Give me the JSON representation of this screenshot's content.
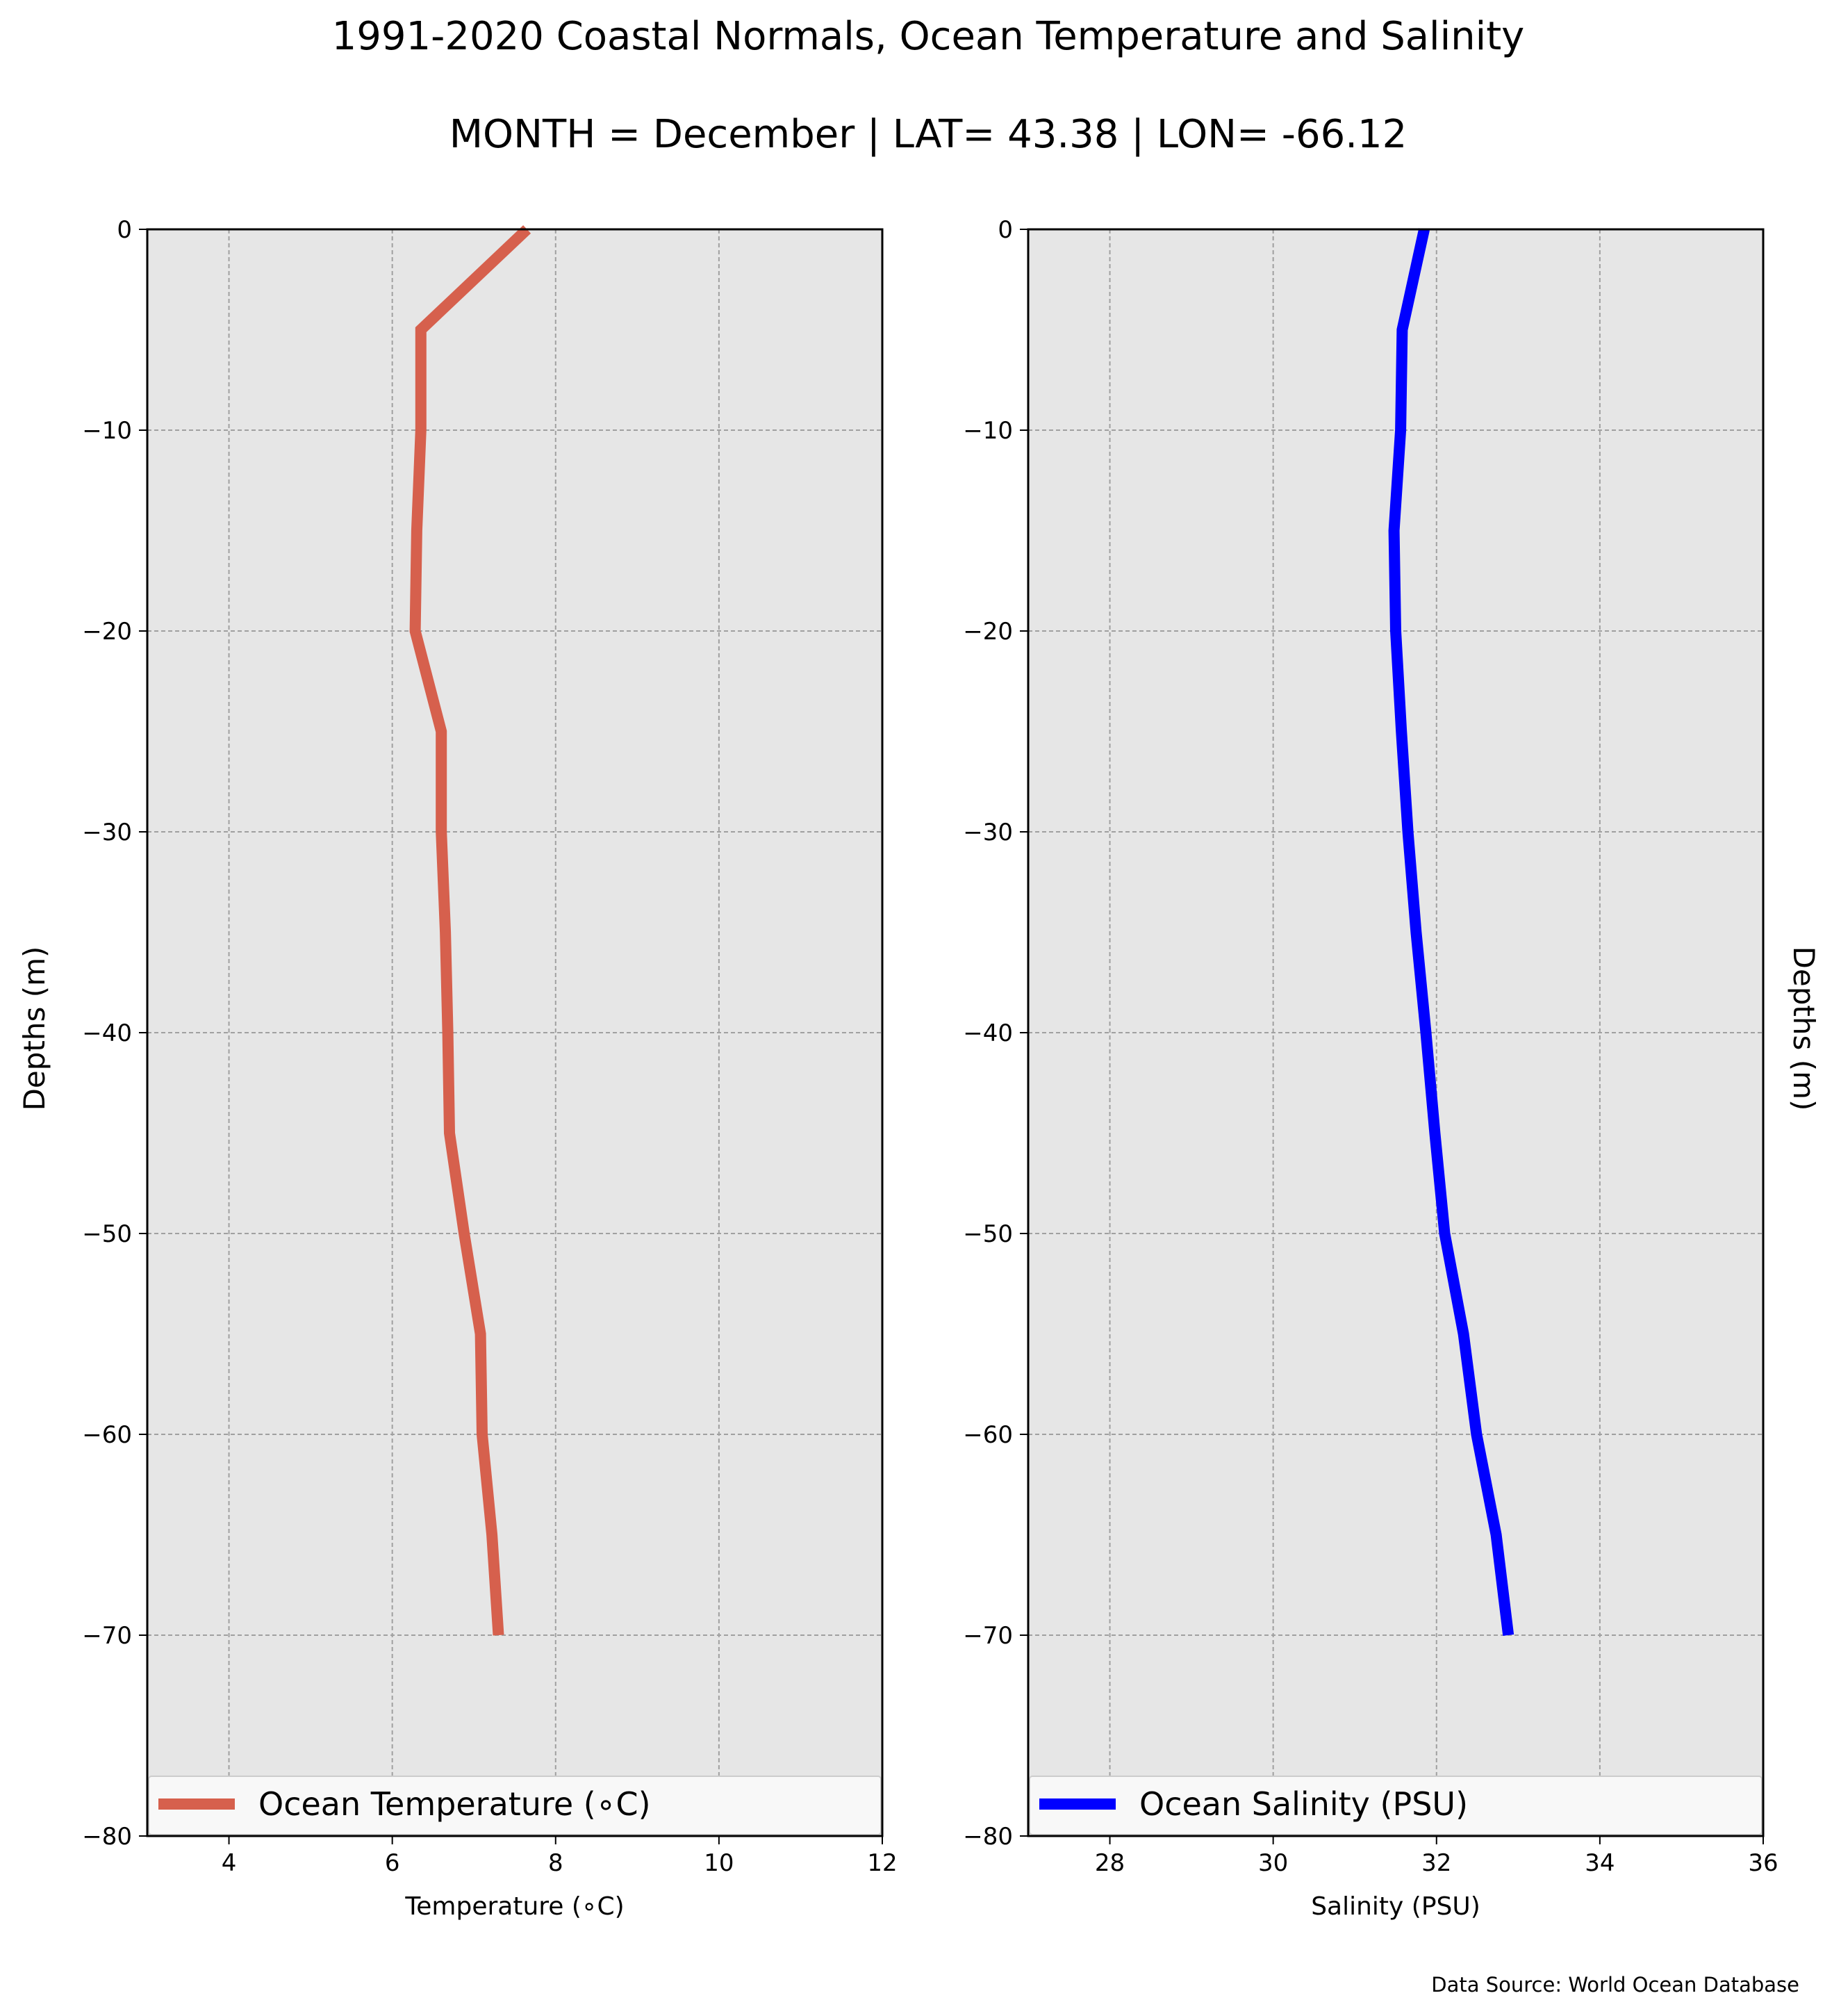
{
  "title": "1991-2020 Coastal Normals, Ocean Temperature and Salinity",
  "subtitle": "MONTH = December | LAT= 43.38 | LON= -66.12",
  "source": "Data Source: World Ocean Database",
  "colors": {
    "panel_bg": "#e6e6e6",
    "grid": "#a0a0a0",
    "temperature": "#d6604d",
    "salinity": "#0000ff"
  },
  "chart_data": [
    {
      "type": "line",
      "xlabel": "Temperature ($^\\circ$C)",
      "xlabel_display": "Temperature (∘C)",
      "ylabel": "Depths (m)",
      "xlim": [
        3,
        12
      ],
      "ylim": [
        -80,
        0
      ],
      "xticks": [
        4,
        6,
        8,
        10,
        12
      ],
      "yticks": [
        0,
        -10,
        -20,
        -30,
        -40,
        -50,
        -60,
        -70,
        -80
      ],
      "ytick_labels": [
        "0",
        "−10",
        "−20",
        "−30",
        "−40",
        "−50",
        "−60",
        "−70",
        "−80"
      ],
      "grid": true,
      "legend_position": "bottom",
      "series": [
        {
          "name": "Ocean Temperature (∘C)",
          "color": "#d6604d",
          "depth": [
            0,
            -5,
            -10,
            -15,
            -20,
            -25,
            -30,
            -35,
            -40,
            -45,
            -50,
            -55,
            -60,
            -65,
            -70
          ],
          "values": [
            7.65,
            6.35,
            6.35,
            6.3,
            6.28,
            6.6,
            6.6,
            6.65,
            6.68,
            6.7,
            6.88,
            7.08,
            7.1,
            7.22,
            7.3
          ]
        }
      ]
    },
    {
      "type": "line",
      "xlabel": "Salinity (PSU)",
      "ylabel": "Depths (m)",
      "xlim": [
        27,
        36
      ],
      "ylim": [
        -80,
        0
      ],
      "xticks": [
        28,
        30,
        32,
        34,
        36
      ],
      "yticks": [
        0,
        -10,
        -20,
        -30,
        -40,
        -50,
        -60,
        -70,
        -80
      ],
      "ytick_labels": [
        "0",
        "−10",
        "−20",
        "−30",
        "−40",
        "−50",
        "−60",
        "−70",
        "−80"
      ],
      "grid": true,
      "legend_position": "bottom",
      "series": [
        {
          "name": "Ocean Salinity (PSU)",
          "color": "#0000ff",
          "depth": [
            0,
            -5,
            -10,
            -15,
            -20,
            -25,
            -30,
            -35,
            -40,
            -45,
            -50,
            -55,
            -60,
            -65,
            -70
          ],
          "values": [
            31.85,
            31.58,
            31.56,
            31.48,
            31.5,
            31.57,
            31.65,
            31.75,
            31.87,
            31.98,
            32.1,
            32.33,
            32.49,
            32.73,
            32.88
          ]
        }
      ]
    }
  ]
}
